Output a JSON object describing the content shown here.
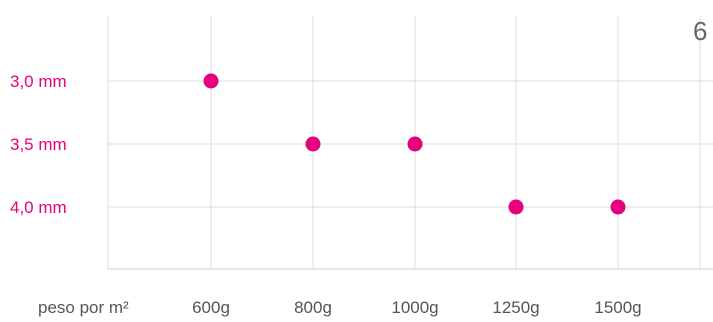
{
  "chart_data": {
    "type": "scatter",
    "title": "",
    "xlabel": "peso por m²",
    "ylabel": "",
    "x_categories": [
      "600g",
      "800g",
      "1000g",
      "1250g",
      "1500g"
    ],
    "y_categories": [
      "3,0 mm",
      "3,5 mm",
      "4,0 mm"
    ],
    "points": [
      {
        "x": "600g",
        "y": "3,0 mm"
      },
      {
        "x": "800g",
        "y": "3,5 mm"
      },
      {
        "x": "1000g",
        "y": "3,5 mm"
      },
      {
        "x": "1250g",
        "y": "4,0 mm"
      },
      {
        "x": "1500g",
        "y": "4,0 mm"
      }
    ],
    "grid": true,
    "legend": "none",
    "colors": {
      "point": "#e6007e",
      "y_tick_text": "#e6007e",
      "x_tick_text": "#555555"
    }
  },
  "corner_glyph": "6"
}
